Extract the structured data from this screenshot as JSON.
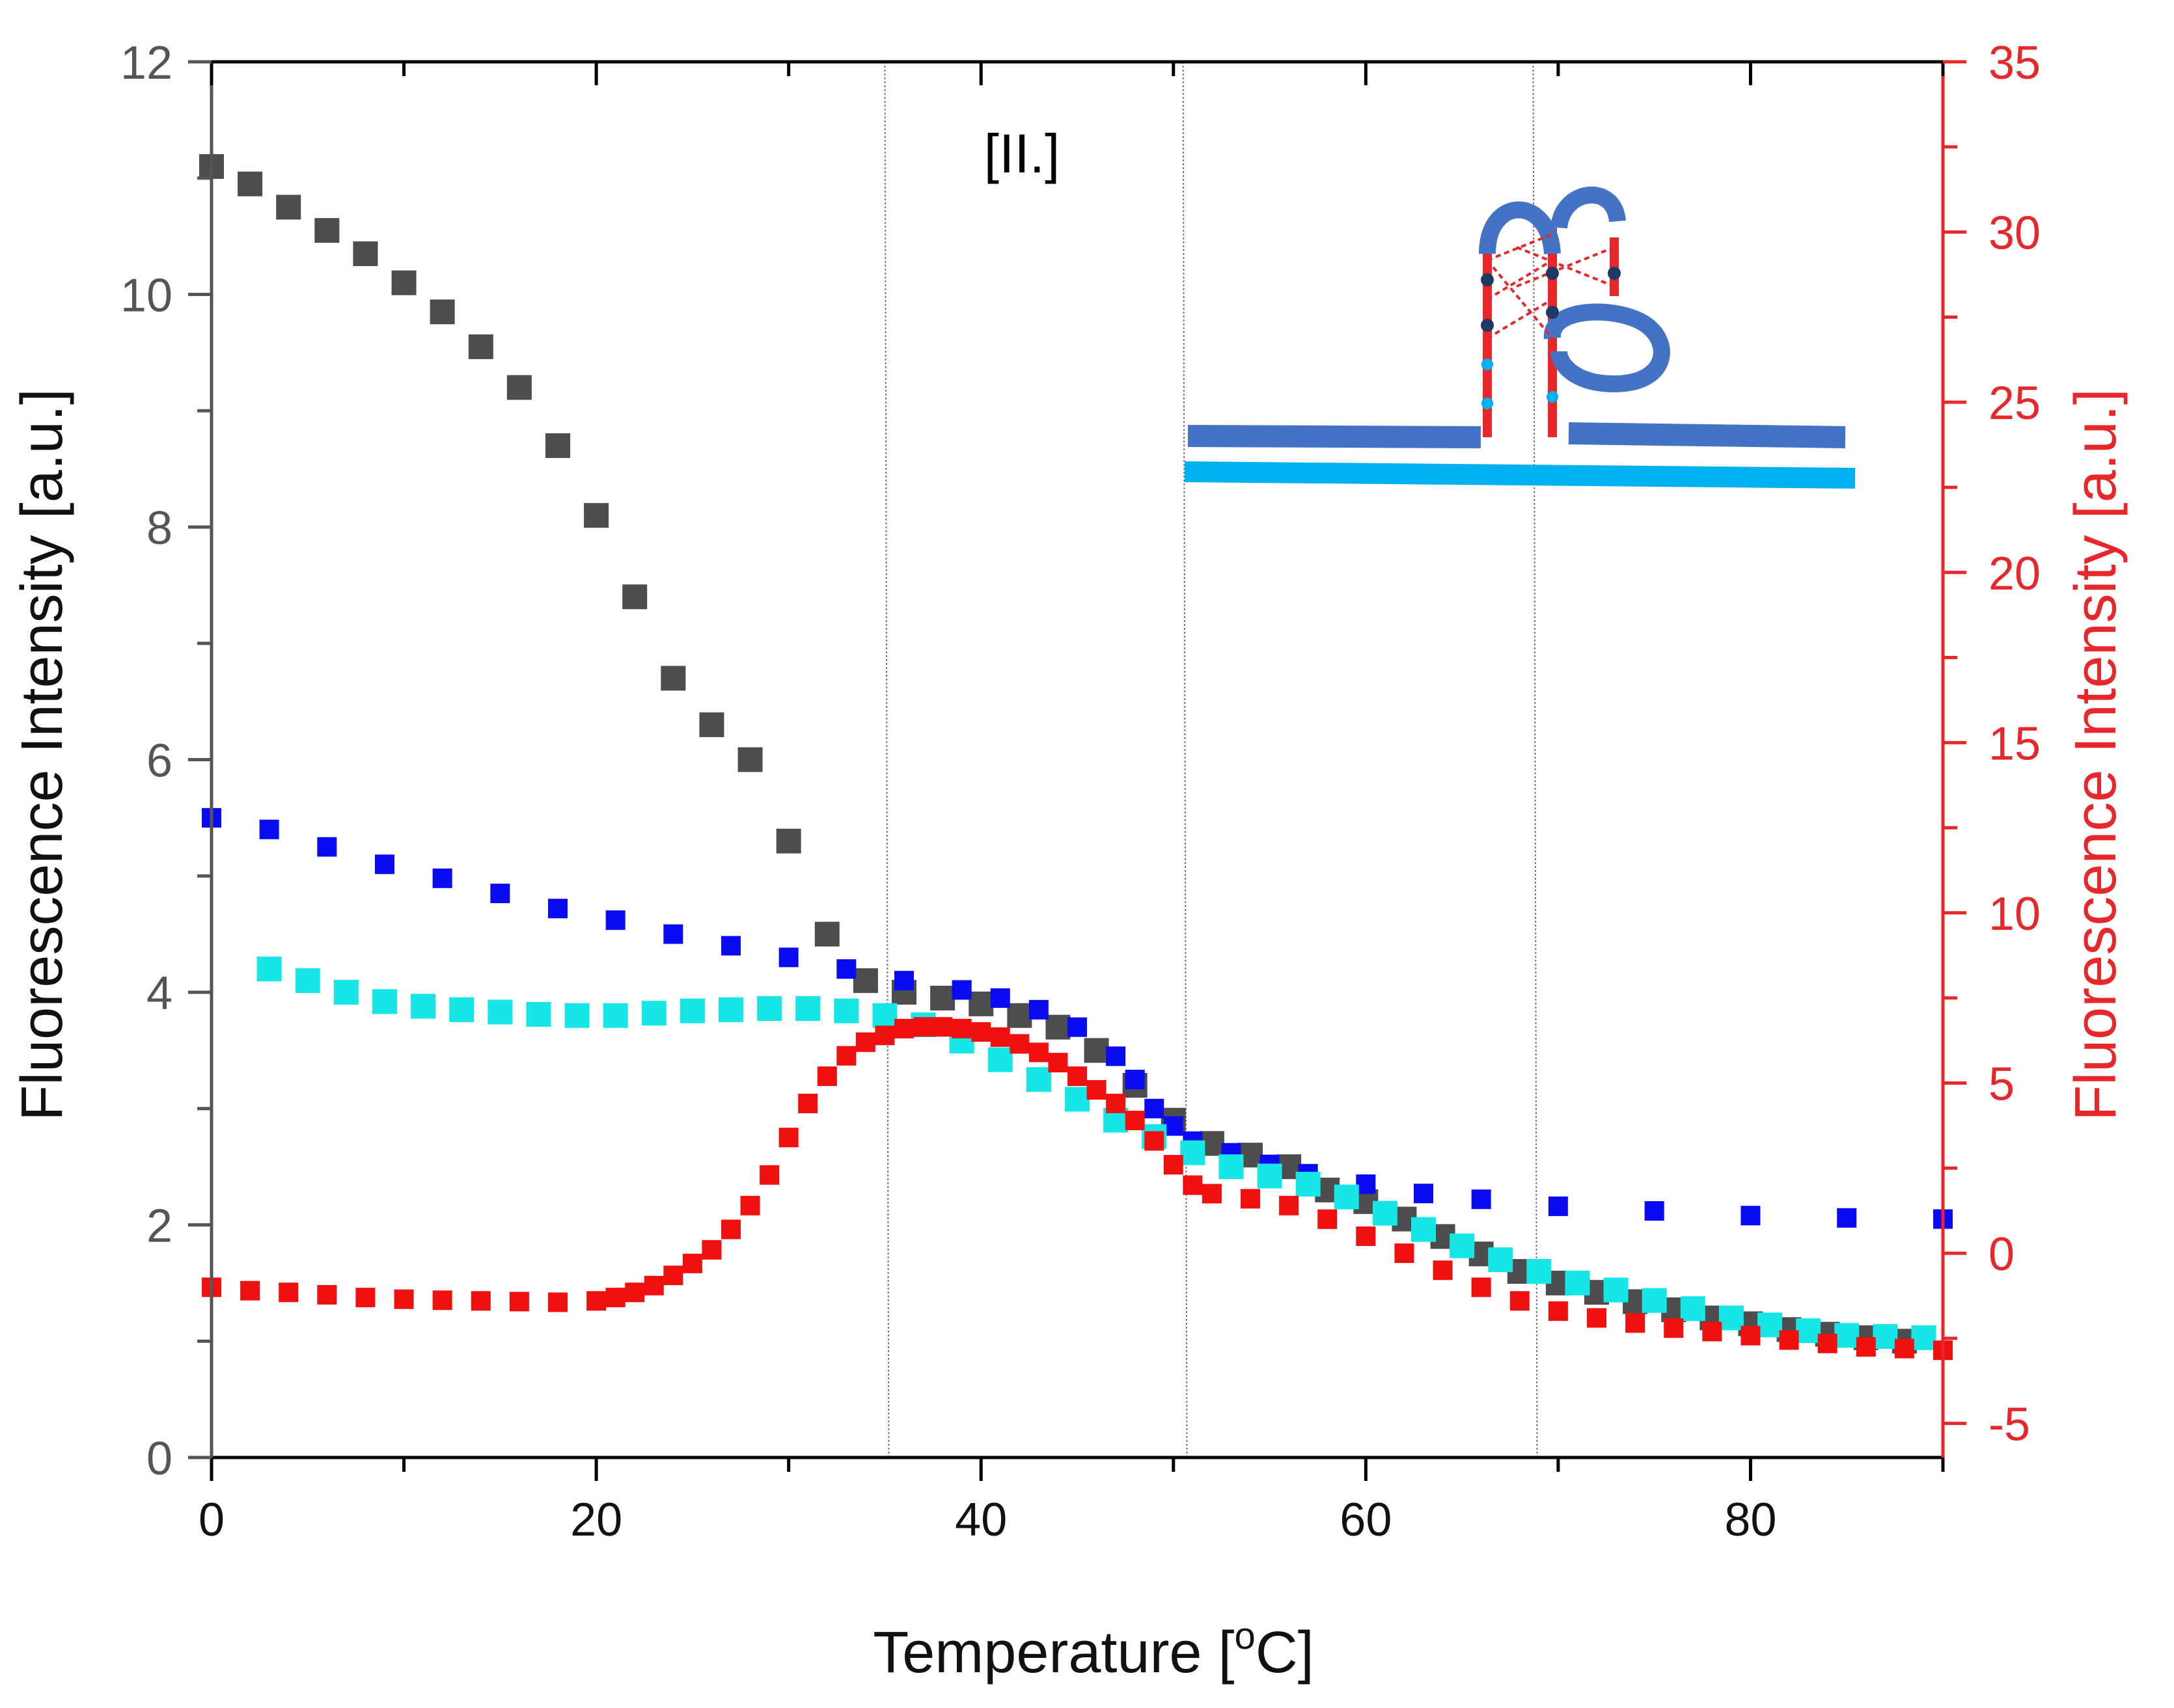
{
  "panel_label": "[II.]",
  "colors": {
    "axis": "#000000",
    "left_axis_text": "#555555",
    "right_axis": "#e8272a",
    "series_black": "#4d4d4d",
    "series_blue": "#0b0bf2",
    "series_cyan": "#17e6e6",
    "series_red": "#f01010",
    "inset_dark_blue": "#4472c4",
    "inset_light_blue": "#00b0f0",
    "inset_red": "#e8272a"
  },
  "inset": {
    "description_icon": "dna-hairpin-structure-icon"
  },
  "chart_data": {
    "type": "scatter",
    "xlabel": "Temperature [",
    "xlabel_sup": "o",
    "xlabel_end": "C]",
    "ylabel_left": "Fluorescence Intensity [a.u.]",
    "ylabel_right": "Fluorescence Intensity [a.u.]",
    "xlim": [
      0,
      90
    ],
    "ylim_left": [
      0,
      12
    ],
    "ylim_right": [
      -6,
      35
    ],
    "x_ticks": [
      0,
      20,
      40,
      60,
      80
    ],
    "y_left_ticks": [
      0,
      2,
      4,
      6,
      8,
      10,
      12
    ],
    "y_right_ticks": [
      -5,
      0,
      5,
      10,
      15,
      20,
      25,
      30,
      35
    ],
    "vertical_reference_lines": [
      35,
      50.5,
      68.7
    ],
    "series": [
      {
        "name": "black",
        "axis": "left",
        "marker_size": "large",
        "points": [
          [
            0,
            11.1
          ],
          [
            2,
            10.95
          ],
          [
            4,
            10.75
          ],
          [
            6,
            10.55
          ],
          [
            8,
            10.35
          ],
          [
            10,
            10.1
          ],
          [
            12,
            9.85
          ],
          [
            14,
            9.55
          ],
          [
            16,
            9.2
          ],
          [
            18,
            8.7
          ],
          [
            20,
            8.1
          ],
          [
            22,
            7.4
          ],
          [
            24,
            6.7
          ],
          [
            26,
            6.3
          ],
          [
            28,
            6.0
          ],
          [
            30,
            5.3
          ],
          [
            32,
            4.5
          ],
          [
            34,
            4.1
          ],
          [
            36,
            4.0
          ],
          [
            38,
            3.95
          ],
          [
            40,
            3.9
          ],
          [
            42,
            3.8
          ],
          [
            44,
            3.7
          ],
          [
            46,
            3.5
          ],
          [
            48,
            3.2
          ],
          [
            50,
            2.9
          ],
          [
            52,
            2.7
          ],
          [
            54,
            2.6
          ],
          [
            56,
            2.5
          ],
          [
            58,
            2.3
          ],
          [
            60,
            2.2
          ],
          [
            62,
            2.05
          ],
          [
            64,
            1.9
          ],
          [
            66,
            1.75
          ],
          [
            68,
            1.6
          ],
          [
            70,
            1.5
          ],
          [
            72,
            1.42
          ],
          [
            74,
            1.34
          ],
          [
            76,
            1.27
          ],
          [
            78,
            1.2
          ],
          [
            80,
            1.15
          ],
          [
            82,
            1.1
          ],
          [
            84,
            1.06
          ],
          [
            86,
            1.03
          ],
          [
            88,
            1.0
          ]
        ]
      },
      {
        "name": "blue",
        "axis": "left",
        "marker_size": "small",
        "points": [
          [
            0,
            5.5
          ],
          [
            3,
            5.4
          ],
          [
            6,
            5.25
          ],
          [
            9,
            5.1
          ],
          [
            12,
            4.98
          ],
          [
            15,
            4.85
          ],
          [
            18,
            4.72
          ],
          [
            21,
            4.62
          ],
          [
            24,
            4.5
          ],
          [
            27,
            4.4
          ],
          [
            30,
            4.3
          ],
          [
            33,
            4.2
          ],
          [
            36,
            4.1
          ],
          [
            39,
            4.02
          ],
          [
            41,
            3.95
          ],
          [
            43,
            3.85
          ],
          [
            45,
            3.7
          ],
          [
            47,
            3.45
          ],
          [
            48,
            3.25
          ],
          [
            49,
            3.0
          ],
          [
            50,
            2.85
          ],
          [
            51,
            2.72
          ],
          [
            53,
            2.62
          ],
          [
            55,
            2.52
          ],
          [
            57,
            2.44
          ],
          [
            60,
            2.35
          ],
          [
            63,
            2.27
          ],
          [
            66,
            2.22
          ],
          [
            70,
            2.16
          ],
          [
            75,
            2.12
          ],
          [
            80,
            2.08
          ],
          [
            85,
            2.06
          ],
          [
            90,
            2.05
          ]
        ]
      },
      {
        "name": "cyan",
        "axis": "left",
        "marker_size": "large",
        "points": [
          [
            3,
            4.2
          ],
          [
            5,
            4.1
          ],
          [
            7,
            4.0
          ],
          [
            9,
            3.92
          ],
          [
            11,
            3.88
          ],
          [
            13,
            3.85
          ],
          [
            15,
            3.83
          ],
          [
            17,
            3.81
          ],
          [
            19,
            3.8
          ],
          [
            21,
            3.8
          ],
          [
            23,
            3.82
          ],
          [
            25,
            3.84
          ],
          [
            27,
            3.85
          ],
          [
            29,
            3.86
          ],
          [
            31,
            3.86
          ],
          [
            33,
            3.84
          ],
          [
            35,
            3.8
          ],
          [
            37,
            3.72
          ],
          [
            39,
            3.58
          ],
          [
            41,
            3.42
          ],
          [
            43,
            3.25
          ],
          [
            45,
            3.08
          ],
          [
            47,
            2.9
          ],
          [
            49,
            2.76
          ],
          [
            51,
            2.62
          ],
          [
            53,
            2.5
          ],
          [
            55,
            2.42
          ],
          [
            57,
            2.35
          ],
          [
            59,
            2.24
          ],
          [
            61,
            2.1
          ],
          [
            63,
            1.96
          ],
          [
            65,
            1.82
          ],
          [
            67,
            1.7
          ],
          [
            69,
            1.6
          ],
          [
            71,
            1.5
          ],
          [
            73,
            1.44
          ],
          [
            75,
            1.35
          ],
          [
            77,
            1.28
          ],
          [
            79,
            1.2
          ],
          [
            81,
            1.14
          ],
          [
            83,
            1.09
          ],
          [
            85,
            1.05
          ],
          [
            87,
            1.04
          ],
          [
            89,
            1.03
          ]
        ]
      },
      {
        "name": "red",
        "axis": "right",
        "marker_size": "small",
        "points": [
          [
            0,
            -1.0
          ],
          [
            2,
            -1.1
          ],
          [
            4,
            -1.15
          ],
          [
            6,
            -1.22
          ],
          [
            8,
            -1.3
          ],
          [
            10,
            -1.35
          ],
          [
            12,
            -1.38
          ],
          [
            14,
            -1.4
          ],
          [
            16,
            -1.42
          ],
          [
            18,
            -1.44
          ],
          [
            20,
            -1.4
          ],
          [
            21,
            -1.3
          ],
          [
            22,
            -1.15
          ],
          [
            23,
            -0.95
          ],
          [
            24,
            -0.65
          ],
          [
            25,
            -0.3
          ],
          [
            26,
            0.1
          ],
          [
            27,
            0.7
          ],
          [
            28,
            1.4
          ],
          [
            29,
            2.3
          ],
          [
            30,
            3.4
          ],
          [
            31,
            4.4
          ],
          [
            32,
            5.2
          ],
          [
            33,
            5.8
          ],
          [
            34,
            6.2
          ],
          [
            35,
            6.4
          ],
          [
            36,
            6.6
          ],
          [
            37,
            6.65
          ],
          [
            38,
            6.65
          ],
          [
            39,
            6.6
          ],
          [
            40,
            6.5
          ],
          [
            41,
            6.35
          ],
          [
            42,
            6.15
          ],
          [
            43,
            5.9
          ],
          [
            44,
            5.6
          ],
          [
            45,
            5.2
          ],
          [
            46,
            4.8
          ],
          [
            47,
            4.4
          ],
          [
            48,
            3.9
          ],
          [
            49,
            3.3
          ],
          [
            50,
            2.6
          ],
          [
            51,
            2.0
          ],
          [
            52,
            1.75
          ],
          [
            54,
            1.6
          ],
          [
            56,
            1.4
          ],
          [
            58,
            1.0
          ],
          [
            60,
            0.5
          ],
          [
            62,
            0.0
          ],
          [
            64,
            -0.5
          ],
          [
            66,
            -1.0
          ],
          [
            68,
            -1.4
          ],
          [
            70,
            -1.7
          ],
          [
            72,
            -1.9
          ],
          [
            74,
            -2.05
          ],
          [
            76,
            -2.2
          ],
          [
            78,
            -2.3
          ],
          [
            80,
            -2.42
          ],
          [
            82,
            -2.55
          ],
          [
            84,
            -2.65
          ],
          [
            86,
            -2.75
          ],
          [
            88,
            -2.8
          ],
          [
            90,
            -2.85
          ]
        ]
      }
    ]
  }
}
